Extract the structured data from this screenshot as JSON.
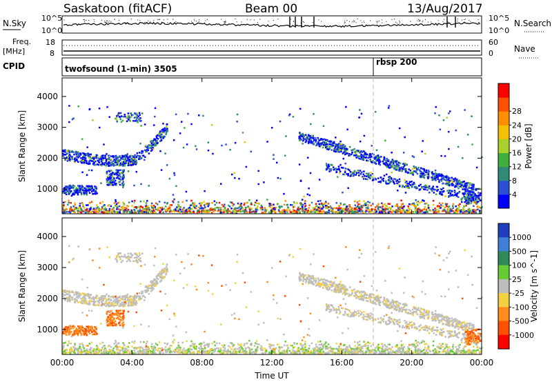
{
  "header": {
    "title": "Saskatoon (fitACF)",
    "beam": "Beam 00",
    "date": "13/Aug/2017"
  },
  "top_panels": {
    "nsky_label": "N.Sky",
    "nsky_ticks": [
      "10^5",
      "10^0"
    ],
    "nsearch_label": "N.Search",
    "freq_label_1": "Freq.",
    "freq_label_2": "[MHz]",
    "freq_ticks": [
      "18",
      "8"
    ],
    "nave_ticks": [
      "60",
      "0"
    ],
    "nave_label": "Nave",
    "cpid_label": "CPID",
    "cpid_segments": [
      {
        "label": "twofsound (1-min) 3505",
        "start_hour": 0
      },
      {
        "label": "rbsp 200",
        "start_hour": 18
      }
    ]
  },
  "chart_data": [
    {
      "type": "heatmap",
      "name": "power",
      "ylabel": "Slant Range [km]",
      "yticks": [
        1000,
        2000,
        3000,
        4000
      ],
      "ylim": [
        200,
        4600
      ],
      "xlim": [
        0,
        24
      ],
      "xticks": [
        0,
        4,
        8,
        12,
        16,
        20,
        24
      ],
      "colorbar": {
        "label": "Power [dB]",
        "ticks": [
          "4",
          "8",
          "12",
          "16",
          "20",
          "24",
          "28"
        ],
        "colors": [
          "#0000ff",
          "#2d4fd8",
          "#2f8a76",
          "#3fae3f",
          "#a7d12a",
          "#f2c200",
          "#ff8f00",
          "#ff4f00",
          "#ff0000"
        ]
      },
      "regions": [
        {
          "x": [
            0,
            6
          ],
          "y": [
            1700,
            2700
          ]
        },
        {
          "x": [
            0,
            2
          ],
          "y": [
            900,
            1700
          ]
        },
        {
          "x": [
            2.5,
            3.5
          ],
          "y": [
            1000,
            1600
          ]
        },
        {
          "x": [
            3,
            4.5
          ],
          "y": [
            3100,
            3500
          ]
        },
        {
          "x": [
            13.5,
            23.5
          ],
          "y": [
            600,
            2800
          ]
        },
        {
          "x": [
            0,
            24
          ],
          "y": [
            200,
            600
          ]
        }
      ]
    },
    {
      "type": "heatmap",
      "name": "velocity",
      "ylabel": "Slant Range [km]",
      "yticks": [
        1000,
        2000,
        3000,
        4000
      ],
      "ylim": [
        200,
        4600
      ],
      "xlim": [
        0,
        24
      ],
      "xticks": [
        0,
        4,
        8,
        12,
        16,
        20,
        24
      ],
      "xticklabels": [
        "00:00",
        "04:00",
        "08:00",
        "12:00",
        "16:00",
        "20:00",
        "00:00"
      ],
      "xlabel": "Time UT",
      "colorbar": {
        "label": "Velocity [m s^-1]",
        "ticks": [
          "1000",
          "500",
          "100",
          "25",
          "-25",
          "-100",
          "-500",
          "-1000"
        ],
        "colors": [
          "#1f3fbf",
          "#3f7fd9",
          "#2e8b57",
          "#66cc33",
          "#bdbdbd",
          "#f5d142",
          "#ff8c1a",
          "#ff4f00",
          "#ff0000"
        ]
      }
    }
  ]
}
